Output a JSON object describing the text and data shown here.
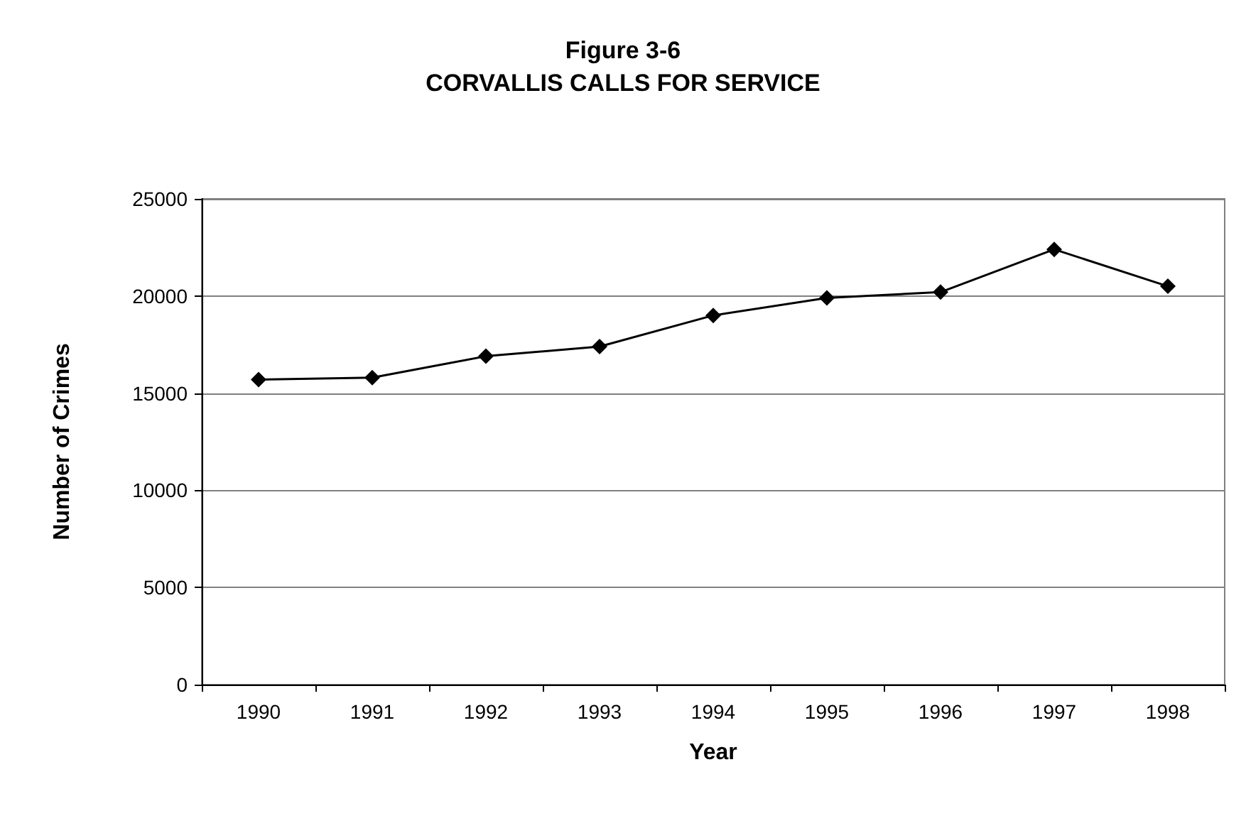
{
  "chart_data": {
    "type": "line",
    "title": "Figure 3-6",
    "subtitle": "CORVALLIS CALLS FOR SERVICE",
    "xlabel": "Year",
    "ylabel": "Number of Crimes",
    "categories": [
      "1990",
      "1991",
      "1992",
      "1993",
      "1994",
      "1995",
      "1996",
      "1997",
      "1998"
    ],
    "series": [
      {
        "color": "#000000",
        "values": [
          15700,
          15800,
          16900,
          17400,
          19000,
          19900,
          20200,
          22400,
          20500
        ]
      }
    ],
    "ylim": [
      0,
      25000
    ],
    "yticks": [
      0,
      5000,
      10000,
      15000,
      20000,
      25000
    ],
    "grid": "y",
    "marker": "diamond",
    "line_style": "solid"
  }
}
